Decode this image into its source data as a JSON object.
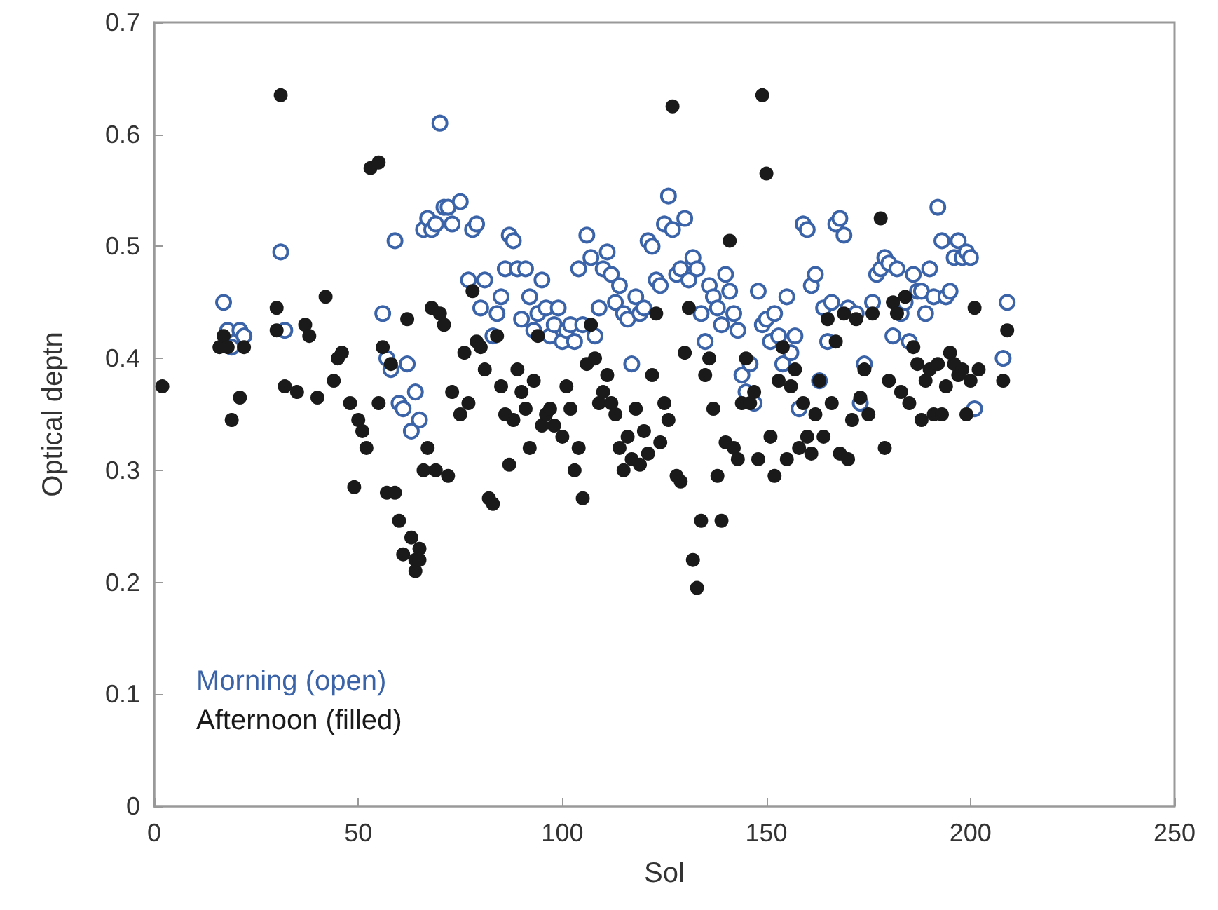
{
  "chart_data": {
    "type": "scatter",
    "xlabel": "Sol",
    "ylabel": "Optical deptn",
    "xlim": [
      0,
      250
    ],
    "xticks": [
      0,
      50,
      100,
      150,
      200,
      250
    ],
    "ylim": [
      0,
      0.7
    ],
    "yticks": [
      0,
      0.1,
      0.2,
      0.3,
      0.4,
      0.5,
      0.6,
      0.7
    ],
    "grid": false,
    "legend": "bottom left",
    "series": [
      {
        "name": "Morning (open)",
        "color": "#3a63a8",
        "marker": "open circle",
        "x": [
          17,
          18,
          19,
          21,
          22,
          31,
          32,
          56,
          57,
          58,
          59,
          60,
          61,
          62,
          63,
          64,
          65,
          66,
          67,
          68,
          69,
          70,
          71,
          72,
          73,
          75,
          77,
          78,
          79,
          80,
          81,
          83,
          84,
          85,
          86,
          87,
          88,
          89,
          90,
          91,
          92,
          93,
          94,
          95,
          96,
          97,
          98,
          99,
          100,
          101,
          102,
          103,
          104,
          105,
          106,
          107,
          108,
          109,
          110,
          111,
          112,
          113,
          114,
          115,
          116,
          117,
          118,
          119,
          120,
          121,
          122,
          123,
          124,
          125,
          126,
          127,
          128,
          129,
          130,
          131,
          132,
          133,
          134,
          135,
          136,
          137,
          138,
          139,
          140,
          141,
          142,
          143,
          144,
          145,
          146,
          147,
          148,
          149,
          150,
          151,
          152,
          153,
          154,
          155,
          156,
          157,
          158,
          159,
          160,
          161,
          162,
          163,
          164,
          165,
          166,
          167,
          168,
          169,
          170,
          172,
          173,
          174,
          176,
          177,
          178,
          179,
          180,
          181,
          182,
          183,
          184,
          185,
          186,
          187,
          188,
          189,
          190,
          191,
          192,
          193,
          194,
          195,
          196,
          197,
          198,
          199,
          200,
          201,
          208,
          209
        ],
        "values": [
          0.45,
          0.425,
          0.41,
          0.425,
          0.42,
          0.495,
          0.425,
          0.44,
          0.4,
          0.39,
          0.505,
          0.36,
          0.355,
          0.395,
          0.335,
          0.37,
          0.345,
          0.515,
          0.525,
          0.515,
          0.52,
          0.61,
          0.535,
          0.535,
          0.52,
          0.54,
          0.47,
          0.515,
          0.52,
          0.445,
          0.47,
          0.42,
          0.44,
          0.455,
          0.48,
          0.51,
          0.505,
          0.48,
          0.435,
          0.48,
          0.455,
          0.425,
          0.44,
          0.47,
          0.445,
          0.42,
          0.43,
          0.445,
          0.415,
          0.425,
          0.43,
          0.415,
          0.48,
          0.43,
          0.51,
          0.49,
          0.42,
          0.445,
          0.48,
          0.495,
          0.475,
          0.45,
          0.465,
          0.44,
          0.435,
          0.395,
          0.455,
          0.44,
          0.445,
          0.505,
          0.5,
          0.47,
          0.465,
          0.52,
          0.545,
          0.515,
          0.475,
          0.48,
          0.525,
          0.47,
          0.49,
          0.48,
          0.44,
          0.415,
          0.465,
          0.455,
          0.445,
          0.43,
          0.475,
          0.46,
          0.44,
          0.425,
          0.385,
          0.37,
          0.395,
          0.36,
          0.46,
          0.43,
          0.435,
          0.415,
          0.44,
          0.42,
          0.395,
          0.455,
          0.405,
          0.42,
          0.355,
          0.52,
          0.515,
          0.465,
          0.475,
          0.38,
          0.445,
          0.415,
          0.45,
          0.52,
          0.525,
          0.51,
          0.445,
          0.44,
          0.36,
          0.395,
          0.45,
          0.475,
          0.48,
          0.49,
          0.485,
          0.42,
          0.48,
          0.44,
          0.45,
          0.415,
          0.475,
          0.46,
          0.46,
          0.44,
          0.48,
          0.455,
          0.535,
          0.505,
          0.455,
          0.46,
          0.49,
          0.505,
          0.49,
          0.495,
          0.49,
          0.355,
          0.4,
          0.45
        ]
      },
      {
        "name": "Afternoon (filled)",
        "color": "#1a1a1a",
        "marker": "circle",
        "x": [
          2,
          16,
          17,
          18,
          19,
          21,
          22,
          30,
          30,
          31,
          32,
          35,
          37,
          38,
          40,
          42,
          44,
          45,
          46,
          48,
          49,
          50,
          51,
          52,
          53,
          55,
          55,
          56,
          57,
          58,
          59,
          60,
          61,
          62,
          63,
          64,
          64,
          65,
          65,
          66,
          67,
          68,
          69,
          70,
          71,
          72,
          73,
          75,
          76,
          77,
          78,
          79,
          80,
          81,
          82,
          83,
          84,
          85,
          86,
          87,
          88,
          89,
          90,
          91,
          92,
          93,
          94,
          95,
          96,
          97,
          98,
          100,
          101,
          102,
          103,
          104,
          105,
          106,
          107,
          108,
          109,
          110,
          111,
          112,
          113,
          114,
          115,
          116,
          117,
          118,
          119,
          120,
          121,
          122,
          123,
          124,
          125,
          126,
          127,
          128,
          129,
          130,
          131,
          132,
          133,
          134,
          135,
          136,
          137,
          138,
          139,
          140,
          141,
          142,
          143,
          144,
          145,
          146,
          147,
          148,
          149,
          150,
          151,
          152,
          153,
          154,
          155,
          156,
          157,
          158,
          159,
          160,
          161,
          162,
          163,
          164,
          165,
          166,
          167,
          168,
          169,
          170,
          171,
          172,
          173,
          174,
          175,
          176,
          178,
          179,
          180,
          181,
          182,
          183,
          184,
          185,
          186,
          187,
          188,
          189,
          190,
          191,
          192,
          193,
          194,
          195,
          196,
          197,
          198,
          199,
          200,
          201,
          202,
          208,
          209
        ],
        "values": [
          0.375,
          0.41,
          0.42,
          0.41,
          0.345,
          0.365,
          0.41,
          0.425,
          0.445,
          0.635,
          0.375,
          0.37,
          0.43,
          0.42,
          0.365,
          0.455,
          0.38,
          0.4,
          0.405,
          0.36,
          0.285,
          0.345,
          0.335,
          0.32,
          0.57,
          0.575,
          0.36,
          0.41,
          0.28,
          0.395,
          0.28,
          0.255,
          0.225,
          0.435,
          0.24,
          0.22,
          0.21,
          0.23,
          0.22,
          0.3,
          0.32,
          0.445,
          0.3,
          0.44,
          0.43,
          0.295,
          0.37,
          0.35,
          0.405,
          0.36,
          0.46,
          0.415,
          0.41,
          0.39,
          0.275,
          0.27,
          0.42,
          0.375,
          0.35,
          0.305,
          0.345,
          0.39,
          0.37,
          0.355,
          0.32,
          0.38,
          0.42,
          0.34,
          0.35,
          0.355,
          0.34,
          0.33,
          0.375,
          0.355,
          0.3,
          0.32,
          0.275,
          0.395,
          0.43,
          0.4,
          0.36,
          0.37,
          0.385,
          0.36,
          0.35,
          0.32,
          0.3,
          0.33,
          0.31,
          0.355,
          0.305,
          0.335,
          0.315,
          0.385,
          0.44,
          0.325,
          0.36,
          0.345,
          0.625,
          0.295,
          0.29,
          0.405,
          0.445,
          0.22,
          0.195,
          0.255,
          0.385,
          0.4,
          0.355,
          0.295,
          0.255,
          0.325,
          0.505,
          0.32,
          0.31,
          0.36,
          0.4,
          0.36,
          0.37,
          0.31,
          0.635,
          0.565,
          0.33,
          0.295,
          0.38,
          0.41,
          0.31,
          0.375,
          0.39,
          0.32,
          0.36,
          0.33,
          0.315,
          0.35,
          0.38,
          0.33,
          0.435,
          0.36,
          0.415,
          0.315,
          0.44,
          0.31,
          0.345,
          0.435,
          0.365,
          0.39,
          0.35,
          0.44,
          0.525,
          0.32,
          0.38,
          0.45,
          0.44,
          0.37,
          0.455,
          0.36,
          0.41,
          0.395,
          0.345,
          0.38,
          0.39,
          0.35,
          0.395,
          0.35,
          0.375,
          0.405,
          0.395,
          0.385,
          0.39,
          0.35,
          0.38,
          0.445,
          0.39,
          0.38,
          0.425
        ]
      }
    ]
  }
}
